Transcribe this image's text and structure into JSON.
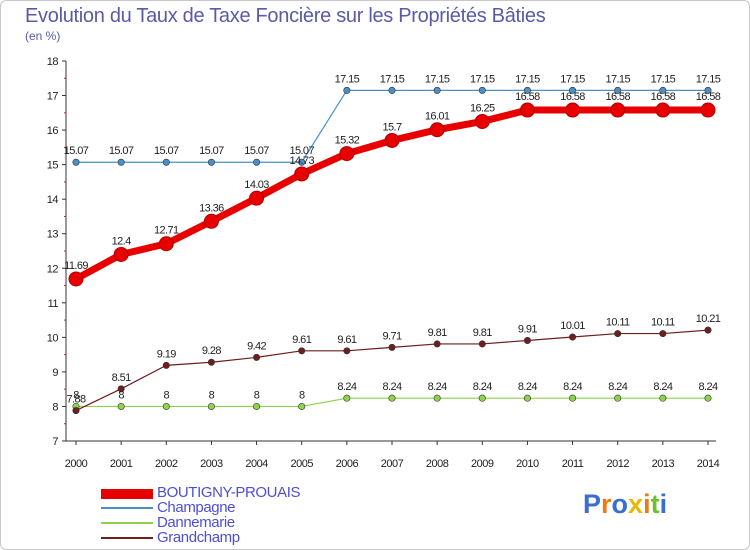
{
  "header": {
    "title": "Evolution du Taux de Taxe Foncière sur les Propriétés Bâties",
    "subtitle": "(en %)"
  },
  "chart_data": {
    "type": "line",
    "title": "Evolution du Taux de Taxe Foncière sur les Propriétés Bâties",
    "ylabel": "(en %)",
    "xlabel": "",
    "x": [
      2000,
      2001,
      2002,
      2003,
      2004,
      2005,
      2006,
      2007,
      2008,
      2009,
      2010,
      2011,
      2012,
      2013,
      2014
    ],
    "ylim": [
      7,
      18
    ],
    "yticks": [
      7,
      8,
      9,
      10,
      11,
      12,
      13,
      14,
      15,
      16,
      17,
      18
    ],
    "grid": false,
    "legend_position": "bottom-left",
    "series": [
      {
        "name": "BOUTIGNY-PROUAIS",
        "color": "#e80000",
        "emphasis": true,
        "values": [
          11.69,
          12.4,
          12.71,
          13.36,
          14.03,
          14.73,
          15.32,
          15.7,
          16.01,
          16.25,
          16.58,
          16.58,
          16.58,
          16.58,
          16.58
        ],
        "labels": [
          "11.69",
          "12.4",
          "12.71",
          "13.36",
          "14.03",
          "14.73",
          "15.32",
          "15.7",
          "16.01",
          "16.25",
          "16.58",
          "16.58",
          "16.58",
          "16.58",
          "16.58"
        ]
      },
      {
        "name": "Champagne",
        "color": "#4a90c8",
        "emphasis": false,
        "values": [
          15.07,
          15.07,
          15.07,
          15.07,
          15.07,
          15.07,
          17.15,
          17.15,
          17.15,
          17.15,
          17.15,
          17.15,
          17.15,
          17.15,
          17.15
        ],
        "labels": [
          "15.07",
          "15.07",
          "15.07",
          "15.07",
          "15.07",
          "15.07",
          "17.15",
          "17.15",
          "17.15",
          "17.15",
          "17.15",
          "17.15",
          "17.15",
          "17.15",
          "17.15"
        ]
      },
      {
        "name": "Dannemarie",
        "color": "#8cd44a",
        "emphasis": false,
        "values": [
          8,
          8,
          8,
          8,
          8,
          8,
          8.24,
          8.24,
          8.24,
          8.24,
          8.24,
          8.24,
          8.24,
          8.24,
          8.24
        ],
        "labels": [
          "8",
          "8",
          "8",
          "8",
          "8",
          "8",
          "8.24",
          "8.24",
          "8.24",
          "8.24",
          "8.24",
          "8.24",
          "8.24",
          "8.24",
          "8.24"
        ]
      },
      {
        "name": "Grandchamp",
        "color": "#6e1e1e",
        "emphasis": false,
        "values": [
          7.88,
          8.51,
          9.19,
          9.28,
          9.42,
          9.61,
          9.61,
          9.71,
          9.81,
          9.81,
          9.91,
          10.01,
          10.11,
          10.11,
          10.21
        ],
        "labels": [
          "7.88",
          "8.51",
          "9.19",
          "9.28",
          "9.42",
          "9.61",
          "9.61",
          "9.71",
          "9.81",
          "9.81",
          "9.91",
          "10.01",
          "10.11",
          "10.11",
          "10.21"
        ]
      }
    ]
  },
  "legend": {
    "items": [
      {
        "label": "BOUTIGNY-PROUAIS",
        "color": "#e80000"
      },
      {
        "label": "Champagne",
        "color": "#4a90c8"
      },
      {
        "label": "Dannemarie",
        "color": "#8cd44a"
      },
      {
        "label": "Grandchamp",
        "color": "#6e1e1e"
      }
    ]
  },
  "branding": {
    "logo_text": "Proxiti",
    "logo_colors": [
      "#3a6fd0",
      "#f07a10",
      "#3a6fd0",
      "#e8b800",
      "#f07a10",
      "#6cc030",
      "#3a6fd0"
    ]
  }
}
